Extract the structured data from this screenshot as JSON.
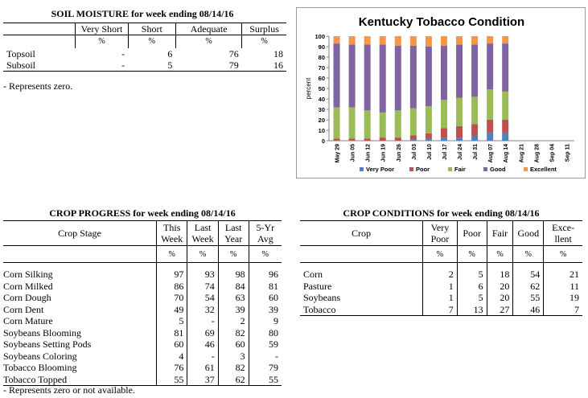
{
  "soil_moisture": {
    "title": "SOIL MOISTURE for week ending 08/14/16",
    "headers": [
      "",
      "Very Short",
      "Short",
      "Adequate",
      "Surplus"
    ],
    "pct_row": [
      "",
      "%",
      "%",
      "%",
      "%"
    ],
    "rows": [
      {
        "label": "Topsoil",
        "values": [
          "-",
          "6",
          "76",
          "18"
        ]
      },
      {
        "label": "Subsoil",
        "values": [
          "-",
          "5",
          "79",
          "16"
        ]
      }
    ],
    "note": "- Represents zero."
  },
  "crop_progress": {
    "title": "CROP PROGRESS for week ending 08/14/16",
    "headers": [
      "Crop Stage",
      "This Week",
      "Last Week",
      "Last Year",
      "5-Yr Avg"
    ],
    "header_lines": [
      [
        "Crop Stage"
      ],
      [
        "This",
        "Week"
      ],
      [
        "Last",
        "Week"
      ],
      [
        "Last",
        "Year"
      ],
      [
        "5-Yr",
        "Avg"
      ]
    ],
    "pct_row": [
      "",
      "%",
      "%",
      "%",
      "%"
    ],
    "rows": [
      {
        "label": "Corn Silking",
        "values": [
          "97",
          "93",
          "98",
          "96"
        ]
      },
      {
        "label": "Corn Milked",
        "values": [
          "86",
          "74",
          "84",
          "81"
        ]
      },
      {
        "label": "Corn Dough",
        "values": [
          "70",
          "54",
          "63",
          "60"
        ]
      },
      {
        "label": "Corn Dent",
        "values": [
          "49",
          "32",
          "39",
          "39"
        ]
      },
      {
        "label": "Corn Mature",
        "values": [
          "5",
          "-",
          "2",
          "9"
        ]
      },
      {
        "label": "Soybeans Blooming",
        "values": [
          "81",
          "69",
          "82",
          "80"
        ]
      },
      {
        "label": "Soybeans Setting Pods",
        "values": [
          "60",
          "46",
          "60",
          "59"
        ]
      },
      {
        "label": "Soybeans Coloring",
        "values": [
          "4",
          "-",
          "3",
          "-"
        ]
      },
      {
        "label": "Tobacco Blooming",
        "values": [
          "76",
          "61",
          "82",
          "79"
        ]
      },
      {
        "label": "Tobacco Topped",
        "values": [
          "55",
          "37",
          "62",
          "55"
        ]
      }
    ],
    "note": "- Represents zero or not available."
  },
  "crop_conditions": {
    "title": "CROP CONDITIONS for week ending 08/14/16",
    "header_lines": [
      [
        "Crop"
      ],
      [
        "Very",
        "Poor"
      ],
      [
        "Poor"
      ],
      [
        "Fair"
      ],
      [
        "Good"
      ],
      [
        "Exce-",
        "llent"
      ]
    ],
    "pct_row": [
      "",
      "%",
      "%",
      "%",
      "%",
      "%"
    ],
    "rows": [
      {
        "label": "Corn",
        "values": [
          "2",
          "5",
          "18",
          "54",
          "21"
        ]
      },
      {
        "label": "Pasture",
        "values": [
          "1",
          "6",
          "20",
          "62",
          "11"
        ]
      },
      {
        "label": "Soybeans",
        "values": [
          "1",
          "5",
          "20",
          "55",
          "19"
        ]
      },
      {
        "label": "Tobacco",
        "values": [
          "7",
          "13",
          "27",
          "46",
          "7"
        ]
      }
    ]
  },
  "chart_data": {
    "type": "bar",
    "stacked": true,
    "title": "Kentucky Tobacco Condition",
    "ylabel": "percent",
    "xlabel": "",
    "ylim": [
      0,
      100
    ],
    "yticks": [
      0,
      10,
      20,
      30,
      40,
      50,
      60,
      70,
      80,
      90,
      100
    ],
    "gridlines": false,
    "legend_position": "bottom",
    "categories": [
      "May 29",
      "Jun 05",
      "Jun 12",
      "Jun 19",
      "Jun 26",
      "Jul 03",
      "Jul 10",
      "Jul 17",
      "Jul 24",
      "Jul 31",
      "Aug 07",
      "Aug 14",
      "Aug 21",
      "Aug 28",
      "Sep 04",
      "Sep 11"
    ],
    "series": [
      {
        "name": "Very Poor",
        "color": "#4f81bd",
        "values": [
          0,
          0,
          0,
          0,
          0,
          1,
          2,
          3,
          3,
          5,
          8,
          7,
          null,
          null,
          null,
          null
        ]
      },
      {
        "name": "Poor",
        "color": "#c0504d",
        "values": [
          2,
          2,
          2,
          3,
          3,
          4,
          5,
          9,
          11,
          11,
          12,
          13,
          null,
          null,
          null,
          null
        ]
      },
      {
        "name": "Fair",
        "color": "#9bbb59",
        "values": [
          30,
          30,
          27,
          24,
          26,
          26,
          26,
          27,
          27,
          26,
          29,
          27,
          null,
          null,
          null,
          null
        ]
      },
      {
        "name": "Good",
        "color": "#8064a2",
        "values": [
          61,
          60,
          63,
          65,
          62,
          60,
          57,
          52,
          51,
          50,
          44,
          46,
          null,
          null,
          null,
          null
        ]
      },
      {
        "name": "Excellent",
        "color": "#f79646",
        "values": [
          7,
          8,
          8,
          8,
          9,
          9,
          10,
          9,
          8,
          8,
          7,
          7,
          null,
          null,
          null,
          null
        ]
      }
    ]
  }
}
